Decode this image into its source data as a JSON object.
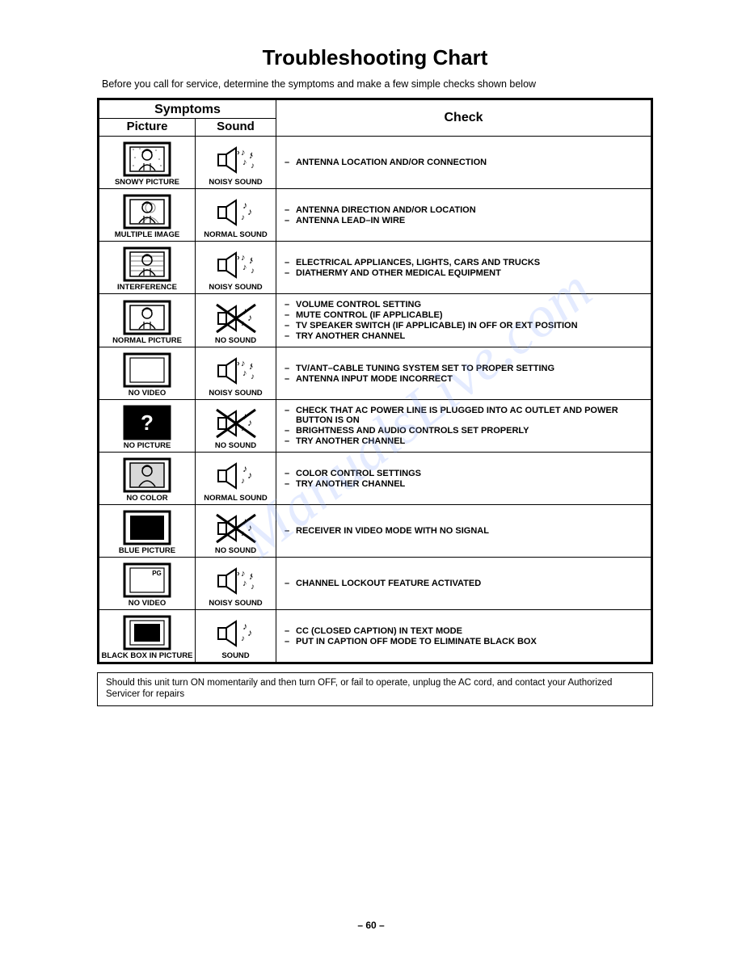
{
  "title": "Troubleshooting Chart",
  "intro": "Before you call for service, determine the symptoms and make a few simple checks shown below",
  "headers": {
    "symptoms": "Symptoms",
    "picture": "Picture",
    "sound": "Sound",
    "check": "Check"
  },
  "rows": [
    {
      "picture_icon": "tv-person-snow",
      "picture_label": "SNOWY PICTURE",
      "sound_icon": "speaker-noisy",
      "sound_label": "NOISY SOUND",
      "checks": [
        "ANTENNA LOCATION AND/OR CONNECTION"
      ]
    },
    {
      "picture_icon": "tv-person-multi",
      "picture_label": "MULTIPLE IMAGE",
      "sound_icon": "speaker-normal",
      "sound_label": "NORMAL SOUND",
      "checks": [
        "ANTENNA DIRECTION AND/OR LOCATION",
        "ANTENNA LEAD–IN WIRE"
      ]
    },
    {
      "picture_icon": "tv-person-interference",
      "picture_label": "INTERFERENCE",
      "sound_icon": "speaker-noisy",
      "sound_label": "NOISY SOUND",
      "checks": [
        "ELECTRICAL APPLIANCES, LIGHTS, CARS AND TRUCKS",
        "DIATHERMY AND OTHER MEDICAL EQUIPMENT"
      ]
    },
    {
      "picture_icon": "tv-person",
      "picture_label": "NORMAL PICTURE",
      "sound_icon": "speaker-cross",
      "sound_label": "NO SOUND",
      "checks": [
        "VOLUME CONTROL SETTING",
        "MUTE CONTROL (IF APPLICABLE)",
        "TV SPEAKER SWITCH (IF APPLICABLE) IN OFF OR EXT POSITION",
        "TRY ANOTHER CHANNEL"
      ]
    },
    {
      "picture_icon": "tv-blank",
      "picture_label": "NO VIDEO",
      "sound_icon": "speaker-noisy",
      "sound_label": "NOISY SOUND",
      "checks": [
        "TV/ANT–CABLE TUNING SYSTEM SET TO PROPER SETTING",
        "ANTENNA INPUT MODE INCORRECT"
      ]
    },
    {
      "picture_icon": "tv-question",
      "picture_label": "NO PICTURE",
      "sound_icon": "speaker-cross",
      "sound_label": "NO SOUND",
      "checks": [
        "CHECK THAT AC POWER LINE IS PLUGGED INTO AC OUTLET AND POWER BUTTON IS ON",
        "BRIGHTNESS AND AUDIO CONTROLS SET PROPERLY",
        "TRY ANOTHER CHANNEL"
      ]
    },
    {
      "picture_icon": "tv-person-gray",
      "picture_label": "NO COLOR",
      "sound_icon": "speaker-normal",
      "sound_label": "NORMAL SOUND",
      "checks": [
        "COLOR CONTROL SETTINGS",
        "TRY ANOTHER CHANNEL"
      ]
    },
    {
      "picture_icon": "tv-solid",
      "picture_label": "BLUE PICTURE",
      "sound_icon": "speaker-cross",
      "sound_label": "NO SOUND",
      "checks": [
        "RECEIVER IN VIDEO MODE WITH NO SIGNAL"
      ]
    },
    {
      "picture_icon": "tv-pg",
      "picture_label": "NO VIDEO",
      "sound_icon": "speaker-noisy",
      "sound_label": "NOISY SOUND",
      "checks": [
        "CHANNEL LOCKOUT FEATURE ACTIVATED"
      ]
    },
    {
      "picture_icon": "tv-blackbox",
      "picture_label": "BLACK BOX IN PICTURE",
      "sound_icon": "speaker-normal",
      "sound_label": "SOUND",
      "checks": [
        "CC (CLOSED CAPTION) IN TEXT MODE",
        "PUT IN CAPTION OFF MODE TO ELIMINATE BLACK BOX"
      ]
    }
  ],
  "footnote": "Should this unit turn ON momentarily and then turn OFF, or fail to operate, unplug the AC cord, and contact your Authorized Servicer for repairs",
  "pagenum": "– 60 –",
  "watermark": "ManualsLive.com",
  "colors": {
    "text": "#000000",
    "bg": "#ffffff",
    "watermark": "#8aa8ff"
  }
}
